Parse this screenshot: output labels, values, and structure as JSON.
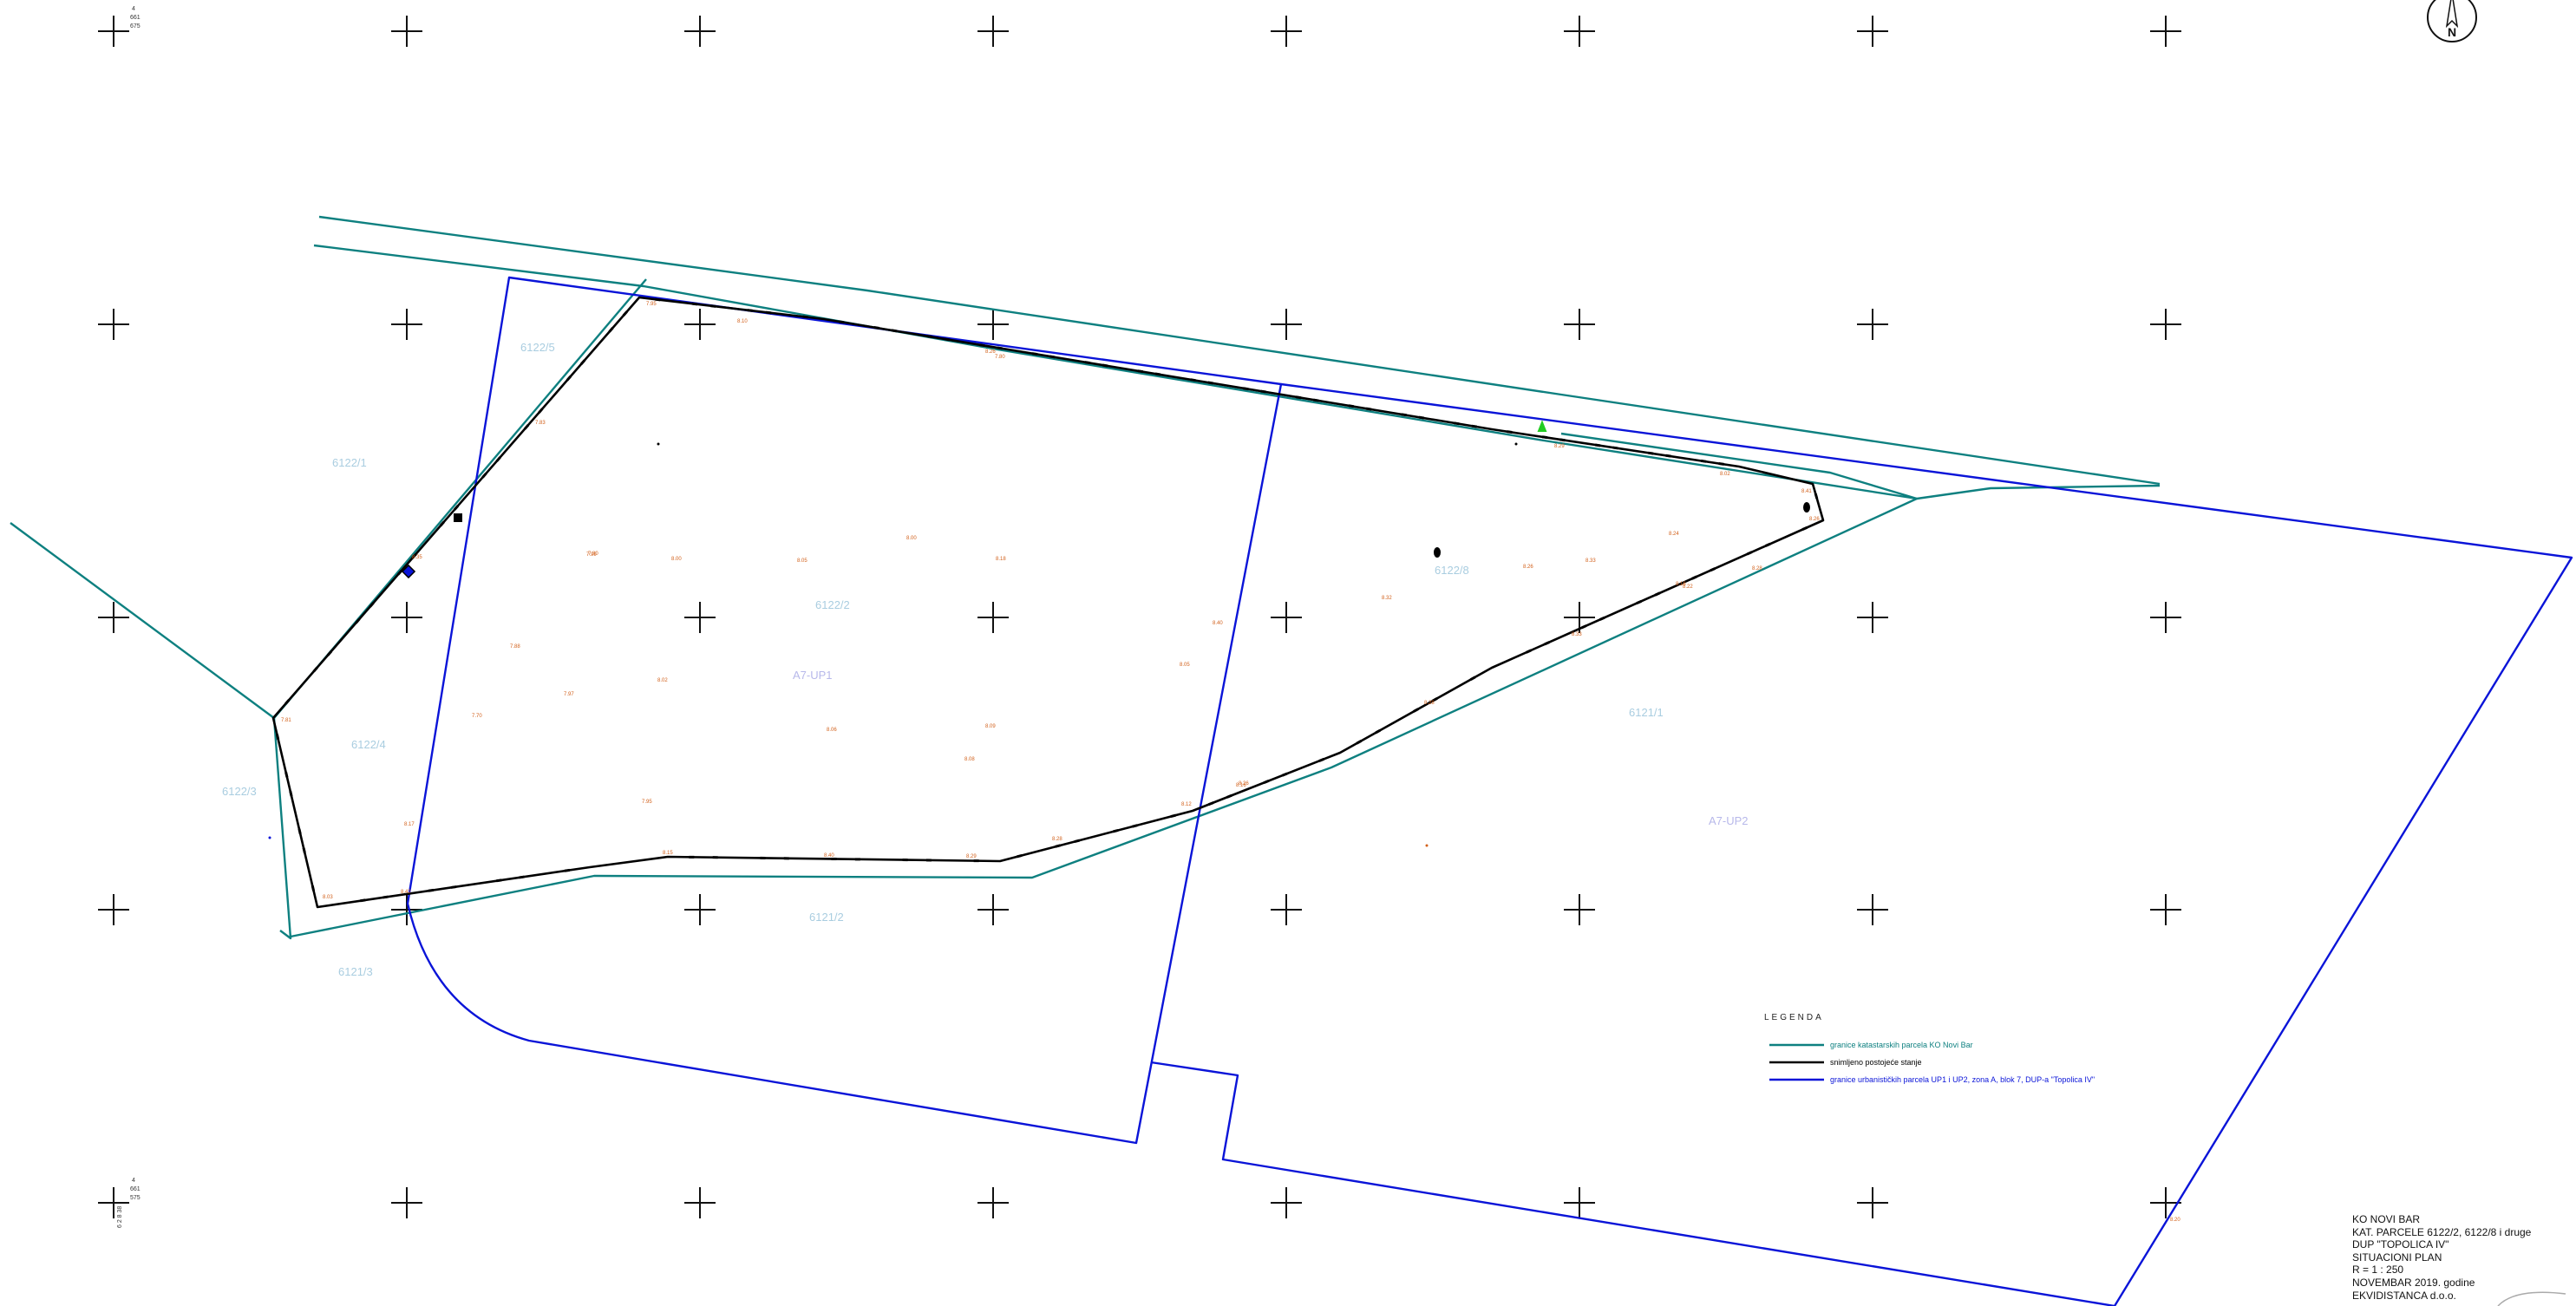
{
  "colors": {
    "cadastral": "#0e8080",
    "surveyed": "#000000",
    "urban": "#0a14d8",
    "parcel_label": "#a9cde0",
    "up_label": "#b7b8ea",
    "elevation": "#d2601b",
    "point_marker": "#22cc22"
  },
  "north_arrow": {
    "letter": "N"
  },
  "corner_coords": {
    "top_left": [
      "4",
      "661",
      "675"
    ],
    "bottom_left": [
      "4",
      "661",
      "575"
    ],
    "bottom_left_side": "6 2 8 38"
  },
  "parcel_labels": {
    "p6122_5": "6122/5",
    "p6122_1": "6122/1",
    "p6122_2": "6122/2",
    "p6122_8": "6122/8",
    "p6122_4": "6122/4",
    "p6122_3": "6122/3",
    "p6121_2": "6121/2",
    "p6121_3": "6121/3",
    "p6121_1": "6121/1"
  },
  "up_labels": {
    "up1": "A7-UP1",
    "up2": "A7-UP2"
  },
  "legend": {
    "title": "LEGENDA",
    "items": [
      {
        "label": "granice katastarskih parcela KO Novi Bar",
        "color": "#0e8080"
      },
      {
        "label": "snimljeno postojeće stanje",
        "color": "#000000"
      },
      {
        "label": "granice urbanističkih parcela UP1 i UP2, zona A, blok 7, DUP-a \"Topolica IV\"",
        "color": "#0a14d8"
      }
    ]
  },
  "title_block": {
    "lines": [
      "KO NOVI BAR",
      "KAT. PARCELE 6122/2, 6122/8 i druge",
      "DUP \"TOPOLICA IV\"",
      "SITUACIONI PLAN",
      "R = 1 : 250",
      "NOVEMBAR  2019. godine",
      "EKVIDISTANCA d.o.o."
    ]
  },
  "elevations": {
    "e01": "7.95",
    "e02": "8.10",
    "e03": "7.80",
    "e04": "7.83",
    "e05": "7.99",
    "e06": "8.00",
    "e07": "8.05",
    "e08": "8.00",
    "e09": "8.18",
    "e10": "7.88",
    "e11": "7.97",
    "e12": "8.02",
    "e13": "7.70",
    "e14": "8.06",
    "e15": "8.09",
    "e16": "8.08",
    "e17": "7.95",
    "e18": "8.17",
    "e19": "8.40",
    "e20": "8.05",
    "e21": "7.81",
    "e22": "8.03",
    "e23": "8.15",
    "e24": "8.40",
    "e25": "8.29",
    "e26": "8.28",
    "e27": "8.12",
    "e28": "8.26",
    "e29": "8.28",
    "e30": "8.32",
    "e31": "8.26",
    "e32": "8.33",
    "e33": "8.24",
    "e34": "8.16",
    "e35": "8.33",
    "e36": "8.29",
    "e37": "8.02",
    "e38": "8.41",
    "e39": "8.26",
    "e40": "8.22",
    "e41": "8.28",
    "e42": "8.16",
    "e43": "8.26",
    "e44": "8.35",
    "e45": "8.42",
    "e46": "7.80",
    "e47": "8.20"
  }
}
